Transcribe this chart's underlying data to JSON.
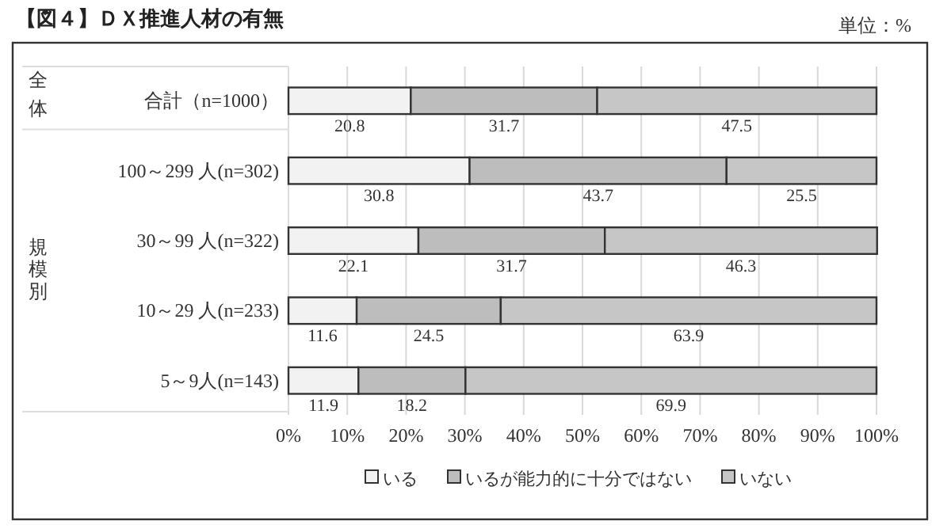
{
  "chart_data": {
    "type": "bar",
    "orientation": "horizontal",
    "stacked": true,
    "title": "【図４】ＤＸ推進人材の有無",
    "annotations": [
      "単位：%",
      "全体",
      "規模別"
    ],
    "categories": [
      "合計（n=1000）",
      "100～299 人(n=302)",
      "30～99 人(n=322)",
      "10～29 人(n=233)",
      "5～9人(n=143)"
    ],
    "series": [
      {
        "name": "いる",
        "color": "#f2f2f2",
        "values": [
          20.8,
          30.8,
          22.1,
          11.6,
          11.9
        ]
      },
      {
        "name": "いるが能力的に十分ではない",
        "color": "#bdbdbd",
        "values": [
          31.7,
          43.7,
          31.7,
          24.5,
          18.2
        ]
      },
      {
        "name": "いない",
        "color": "#c6c6c6",
        "values": [
          47.5,
          25.5,
          46.3,
          63.9,
          69.9
        ]
      }
    ],
    "xlim": [
      0,
      100
    ],
    "xticks": [
      {
        "value": 0,
        "label": "0%"
      },
      {
        "value": 10,
        "label": "10%"
      },
      {
        "value": 20,
        "label": "20%"
      },
      {
        "value": 30,
        "label": "30%"
      },
      {
        "value": 40,
        "label": "40%"
      },
      {
        "value": 50,
        "label": "50%"
      },
      {
        "value": 60,
        "label": "60%"
      },
      {
        "value": 70,
        "label": "70%"
      },
      {
        "value": 80,
        "label": "80%"
      },
      {
        "value": 90,
        "label": "90%"
      },
      {
        "value": 100,
        "label": "100%"
      }
    ],
    "grid": "x",
    "legend": "bottom",
    "data_labels": true
  }
}
